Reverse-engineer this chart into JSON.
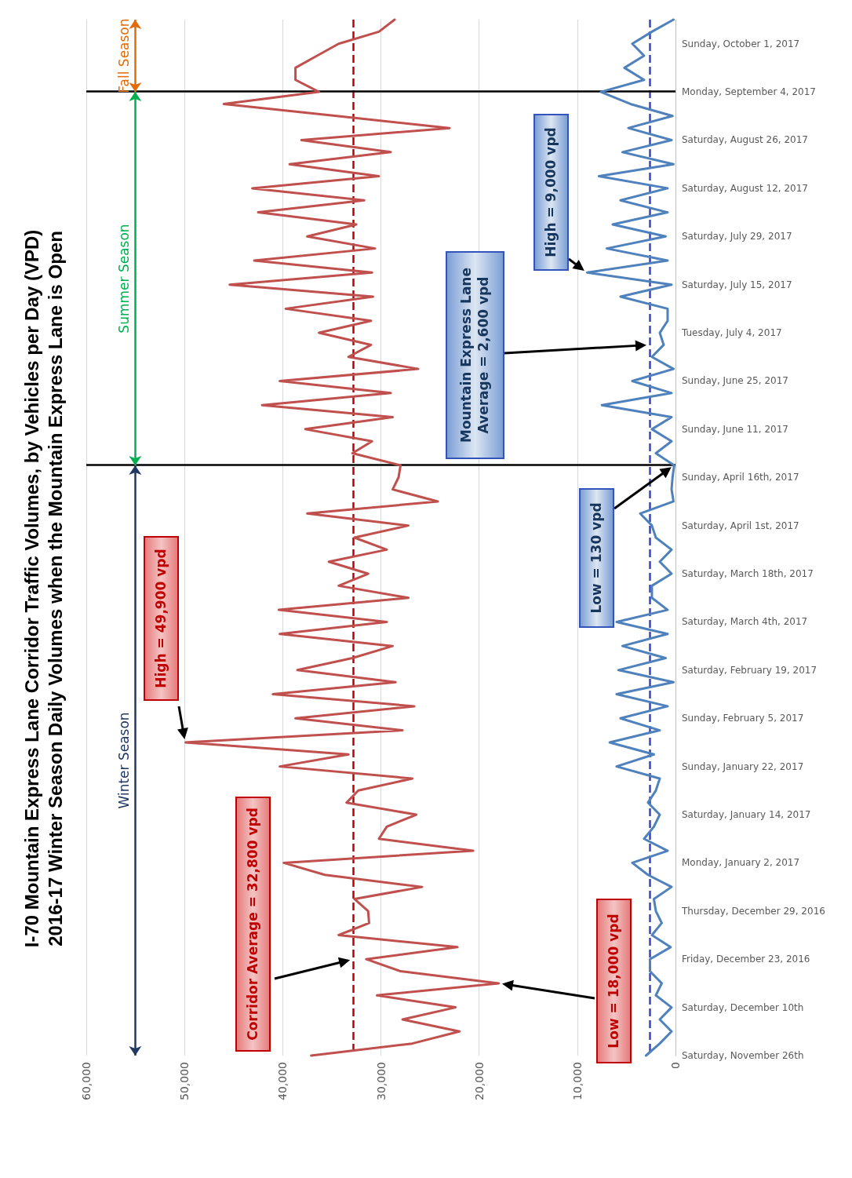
{
  "chart_data": {
    "type": "line",
    "orientation": "horizontal",
    "title": "I-70 Mountain Express Lane Corridor Traffic Volumes, by Vehicles per Day (VPD)",
    "subtitle": "2016-17 Winter Season Daily Volumes when the Mountain Express Lane is Open",
    "categories": [
      null,
      null,
      "Sunday, October 1, 2017",
      null,
      null,
      null,
      "Monday, September 4, 2017",
      null,
      null,
      null,
      "Saturday, August 26, 2017",
      null,
      null,
      null,
      "Saturday, August 12, 2017",
      null,
      null,
      null,
      "Saturday, July 29, 2017",
      null,
      null,
      null,
      "Saturday, July 15, 2017",
      null,
      null,
      null,
      "Tuesday, July 4, 2017",
      null,
      null,
      null,
      "Sunday, June 25, 2017",
      null,
      null,
      null,
      "Sunday, June 11, 2017",
      null,
      null,
      null,
      "Sunday, April 16th, 2017",
      null,
      null,
      null,
      "Saturday, April 1st, 2017",
      null,
      null,
      null,
      "Saturday, March 18th, 2017",
      null,
      null,
      null,
      "Saturday, March 4th, 2017",
      null,
      null,
      null,
      "Saturday, February 19, 2017",
      null,
      null,
      null,
      "Sunday, February 5, 2017",
      null,
      null,
      null,
      "Sunday, January 22, 2017",
      null,
      null,
      null,
      "Saturday, January 14, 2017",
      null,
      null,
      null,
      "Monday, January 2, 2017",
      null,
      null,
      null,
      "Thursday, December 29, 2016",
      null,
      null,
      null,
      "Friday, December 23, 2016",
      null,
      null,
      null,
      "Saturday, December 10th",
      null,
      null,
      null,
      "Saturday, November 26th"
    ],
    "series": [
      {
        "color": "#c0504d",
        "values": [
          28600,
          30200,
          34300,
          36500,
          38700,
          38700,
          36300,
          46000,
          34500,
          23000,
          38100,
          29000,
          39300,
          30200,
          43100,
          31700,
          42500,
          32500,
          37500,
          30600,
          42900,
          30900,
          45400,
          30800,
          39700,
          31000,
          36300,
          31000,
          33300,
          26200,
          40300,
          29000,
          42100,
          28800,
          37700,
          30900,
          32900,
          28000,
          28200,
          28800,
          24200,
          37500,
          27200,
          32700,
          29400,
          35300,
          31300,
          34300,
          27200,
          40400,
          29400,
          40300,
          28800,
          32900,
          38500,
          28500,
          41000,
          26600,
          38700,
          27800,
          49900,
          33300,
          40300,
          26800,
          32300,
          33500,
          26400,
          29400,
          30200,
          20600,
          39900,
          35700,
          25800,
          32700,
          31300,
          31200,
          34300,
          22200,
          31500,
          28000,
          18000,
          30400,
          22400,
          27800,
          22000,
          26800,
          37100
        ]
      },
      {
        "color": "#4f81bd",
        "values": [
          200,
          2400,
          4400,
          3200,
          5200,
          3200,
          7600,
          4600,
          300,
          4800,
          400,
          5400,
          200,
          7800,
          800,
          5600,
          800,
          6400,
          1000,
          7000,
          800,
          9000,
          400,
          5600,
          800,
          800,
          1600,
          1200,
          2400,
          200,
          4400,
          400,
          7500,
          400,
          2400,
          400,
          2000,
          130,
          300,
          400,
          200,
          3600,
          2400,
          2000,
          400,
          1600,
          400,
          2400,
          2400,
          800,
          6000,
          800,
          5400,
          1000,
          5800,
          200,
          6000,
          800,
          5600,
          1600,
          6700,
          2200,
          6000,
          1600,
          2000,
          2800,
          1600,
          2200,
          3200,
          800,
          4400,
          2800,
          400,
          2200,
          2000,
          1400,
          2400,
          500,
          2600,
          2600,
          1400,
          2000,
          400,
          1600,
          400,
          1600,
          3000
        ]
      }
    ],
    "xlim": [
      60000,
      0
    ],
    "xticks": [
      0,
      {
        "value": 10000,
        "label": "10,000"
      },
      {
        "value": 20000,
        "label": "20,000"
      },
      {
        "value": 30000,
        "label": "30,000"
      },
      {
        "value": 40000,
        "label": "40,000"
      },
      {
        "value": 50000,
        "label": "50,000"
      },
      {
        "value": 60000,
        "label": "60,000"
      }
    ],
    "grid": "x",
    "marker": "none",
    "line_style": "solid",
    "ref_lines": [
      {
        "axis": "x",
        "value": 32800,
        "color": "#c00000",
        "line_style": "dashed"
      },
      {
        "axis": "x",
        "value": 2600,
        "color": "#3344cc",
        "line_style": "dashed"
      }
    ],
    "annotations": [
      "Corridor Average = 32,800 vpd",
      "Low = 18,000 vpd",
      "High = 49,900 vpd",
      "Low = 130 vpd",
      "Mountain Express Lane Average = 2,600 vpd",
      "High = 9,000 vpd",
      "Fall Season",
      "Summer Season",
      "Winter Season"
    ]
  }
}
